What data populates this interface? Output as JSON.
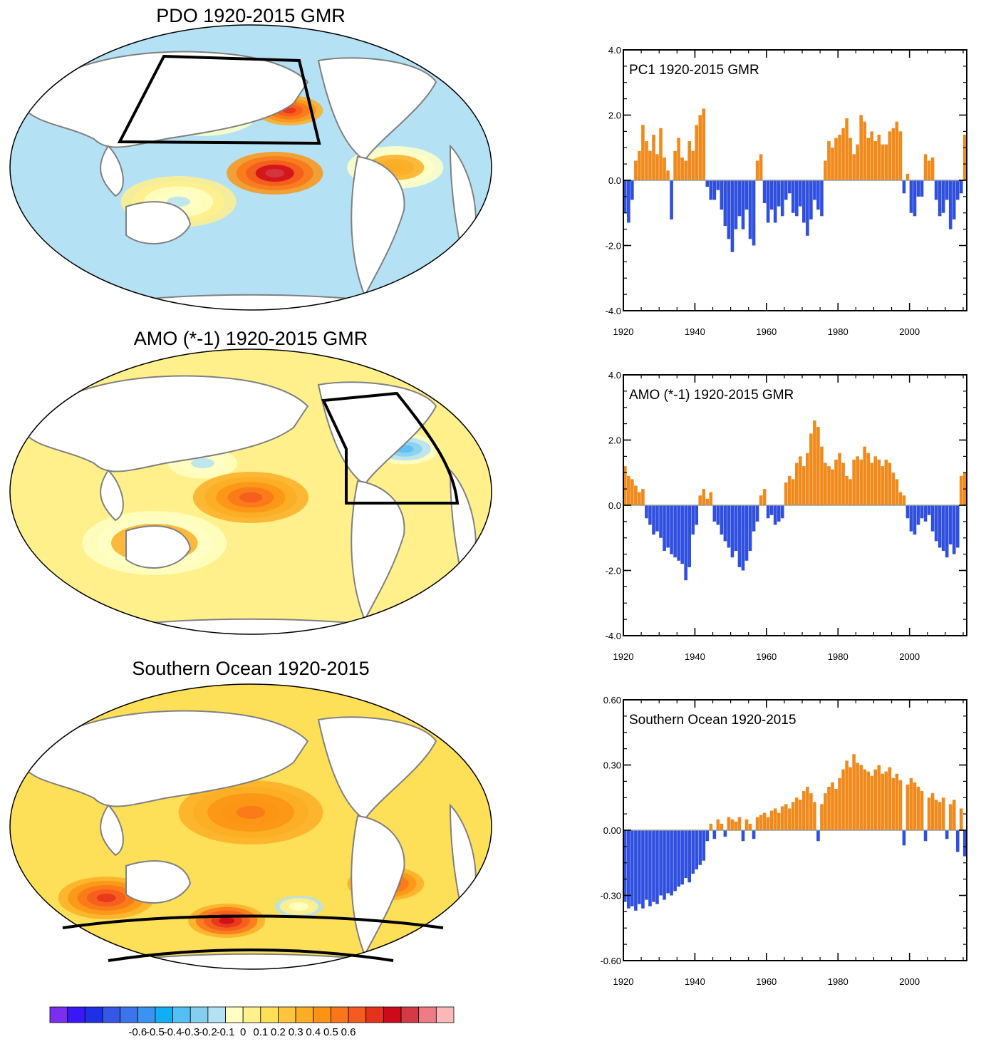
{
  "maps": [
    {
      "title": "PDO 1920-2015 GMR",
      "region": "north-pacific-box",
      "pattern": [
        {
          "lon": 0.45,
          "lat": 0.28,
          "value": -0.6,
          "spread": 0.08
        },
        {
          "lon": 0.4,
          "lat": 0.3,
          "value": -0.45,
          "spread": 0.12
        },
        {
          "lon": 0.58,
          "lat": 0.3,
          "value": 0.35,
          "spread": 0.07
        },
        {
          "lon": 0.55,
          "lat": 0.52,
          "value": 0.45,
          "spread": 0.1
        },
        {
          "lon": 0.35,
          "lat": 0.62,
          "value": -0.2,
          "spread": 0.12
        },
        {
          "lon": 0.8,
          "lat": 0.5,
          "value": 0.1,
          "spread": 0.1
        }
      ]
    },
    {
      "title": "AMO (*-1) 1920-2015 GMR",
      "region": "north-atlantic-box",
      "pattern": [
        {
          "lon": 0.78,
          "lat": 0.22,
          "value": -0.5,
          "spread": 0.06
        },
        {
          "lon": 0.82,
          "lat": 0.35,
          "value": -0.35,
          "spread": 0.09
        },
        {
          "lon": 0.4,
          "lat": 0.4,
          "value": -0.2,
          "spread": 0.12
        },
        {
          "lon": 0.5,
          "lat": 0.52,
          "value": 0.25,
          "spread": 0.12
        },
        {
          "lon": 0.3,
          "lat": 0.68,
          "value": 0.1,
          "spread": 0.15
        }
      ]
    },
    {
      "title": "Southern Ocean 1920-2015",
      "region": "southern-ocean-band",
      "pattern": [
        {
          "lon": 0.45,
          "lat": 0.83,
          "value": 0.4,
          "spread": 0.08
        },
        {
          "lon": 0.2,
          "lat": 0.75,
          "value": 0.3,
          "spread": 0.1
        },
        {
          "lon": 0.78,
          "lat": 0.7,
          "value": 0.35,
          "spread": 0.08
        },
        {
          "lon": 0.5,
          "lat": 0.45,
          "value": 0.2,
          "spread": 0.15
        },
        {
          "lon": 0.6,
          "lat": 0.78,
          "value": -0.15,
          "spread": 0.05
        }
      ]
    }
  ],
  "colorbar": {
    "colors": [
      "#7b2ef0",
      "#3a17f6",
      "#1f2fe6",
      "#3656e6",
      "#3c74ec",
      "#3b92f0",
      "#10aef2",
      "#54bff4",
      "#84cfee",
      "#b4e1f4",
      "#ffffc4",
      "#fff08c",
      "#fee058",
      "#fdc53c",
      "#fbad24",
      "#fb9414",
      "#fa761a",
      "#f55a1e",
      "#e6321c",
      "#cc0a1a",
      "#d43a45",
      "#ed7c86",
      "#fab8b8"
    ],
    "labels": [
      "-0.6",
      "-0.5",
      "-0.4",
      "-0.3",
      "-0.2",
      "-0.1",
      "0",
      "0.1",
      "0.2",
      "0.3",
      "0.4",
      "0.5",
      "0.6"
    ]
  },
  "chart_data": [
    {
      "type": "bar",
      "title": "PC1 1920-2015 GMR",
      "xlim": [
        1920,
        2016
      ],
      "ylim": [
        -4.0,
        4.0
      ],
      "xticks": [
        1920,
        1940,
        1960,
        1980,
        2000
      ],
      "xtick_labels": [
        "1920",
        "1940",
        "1960",
        "1980",
        "2000"
      ],
      "yticks": [
        -4.0,
        -2.0,
        0.0,
        2.0,
        4.0
      ],
      "ytick_labels": [
        "-4.0",
        "-2.0",
        "0.0",
        "2.0",
        "4.0"
      ],
      "positive_color": "#f08a1c",
      "negative_color": "#2f4fe0",
      "x": [
        1920,
        1921,
        1922,
        1923,
        1924,
        1925,
        1926,
        1927,
        1928,
        1929,
        1930,
        1931,
        1932,
        1933,
        1934,
        1935,
        1936,
        1937,
        1938,
        1939,
        1940,
        1941,
        1942,
        1943,
        1944,
        1945,
        1946,
        1947,
        1948,
        1949,
        1950,
        1951,
        1952,
        1953,
        1954,
        1955,
        1956,
        1957,
        1958,
        1959,
        1960,
        1961,
        1962,
        1963,
        1964,
        1965,
        1966,
        1967,
        1968,
        1969,
        1970,
        1971,
        1972,
        1973,
        1974,
        1975,
        1976,
        1977,
        1978,
        1979,
        1980,
        1981,
        1982,
        1983,
        1984,
        1985,
        1986,
        1987,
        1988,
        1989,
        1990,
        1991,
        1992,
        1993,
        1994,
        1995,
        1996,
        1997,
        1998,
        1999,
        2000,
        2001,
        2002,
        2003,
        2004,
        2005,
        2006,
        2007,
        2008,
        2009,
        2010,
        2011,
        2012,
        2013,
        2014,
        2015
      ],
      "values": [
        -1.0,
        -1.3,
        -0.6,
        0.6,
        0.9,
        1.7,
        1.2,
        0.9,
        1.4,
        0.8,
        1.6,
        0.7,
        0.3,
        -1.2,
        0.9,
        1.3,
        0.7,
        0.6,
        1.2,
        0.9,
        1.7,
        2.0,
        2.2,
        -0.2,
        -0.6,
        -0.6,
        -0.3,
        -0.9,
        -1.4,
        -1.8,
        -2.2,
        -1.5,
        -1.1,
        -1.5,
        -0.9,
        -1.8,
        -2.0,
        0.6,
        0.8,
        -0.7,
        -1.3,
        -0.9,
        -1.3,
        -0.8,
        -1.1,
        -0.6,
        -0.4,
        -1.0,
        -1.1,
        -0.8,
        -1.3,
        -1.7,
        -1.2,
        -0.6,
        -0.9,
        -1.1,
        0.6,
        1.2,
        1.0,
        1.3,
        1.4,
        1.6,
        1.9,
        1.3,
        0.8,
        1.1,
        2.0,
        1.8,
        1.3,
        1.5,
        1.2,
        1.4,
        1.1,
        1.1,
        1.5,
        1.6,
        1.8,
        1.5,
        -0.4,
        0.2,
        -1.0,
        -1.1,
        -0.5,
        -0.5,
        0.8,
        0.6,
        0.7,
        -0.6,
        -1.1,
        -1.0,
        -0.6,
        -1.5,
        -1.2,
        -0.6,
        -0.4,
        1.4
      ]
    },
    {
      "type": "bar",
      "title": "AMO (*-1) 1920-2015 GMR",
      "xlim": [
        1920,
        2016
      ],
      "ylim": [
        -4.0,
        4.0
      ],
      "xticks": [
        1920,
        1940,
        1960,
        1980,
        2000
      ],
      "xtick_labels": [
        "1920",
        "1940",
        "1960",
        "1980",
        "2000"
      ],
      "yticks": [
        -4.0,
        -2.0,
        0.0,
        2.0,
        4.0
      ],
      "ytick_labels": [
        "-4.0",
        "-2.0",
        "0.0",
        "2.0",
        "4.0"
      ],
      "positive_color": "#f08a1c",
      "negative_color": "#2f4fe0",
      "x": [
        1920,
        1921,
        1922,
        1923,
        1924,
        1925,
        1926,
        1927,
        1928,
        1929,
        1930,
        1931,
        1932,
        1933,
        1934,
        1935,
        1936,
        1937,
        1938,
        1939,
        1940,
        1941,
        1942,
        1943,
        1944,
        1945,
        1946,
        1947,
        1948,
        1949,
        1950,
        1951,
        1952,
        1953,
        1954,
        1955,
        1956,
        1957,
        1958,
        1959,
        1960,
        1961,
        1962,
        1963,
        1964,
        1965,
        1966,
        1967,
        1968,
        1969,
        1970,
        1971,
        1972,
        1973,
        1974,
        1975,
        1976,
        1977,
        1978,
        1979,
        1980,
        1981,
        1982,
        1983,
        1984,
        1985,
        1986,
        1987,
        1988,
        1989,
        1990,
        1991,
        1992,
        1993,
        1994,
        1995,
        1996,
        1997,
        1998,
        1999,
        2000,
        2001,
        2002,
        2003,
        2004,
        2005,
        2006,
        2007,
        2008,
        2009,
        2010,
        2011,
        2012,
        2013,
        2014,
        2015
      ],
      "values": [
        1.2,
        0.9,
        0.8,
        0.6,
        0.4,
        0.5,
        -0.4,
        -0.6,
        -0.9,
        -0.8,
        -1.0,
        -1.4,
        -1.3,
        -1.5,
        -1.6,
        -1.7,
        -1.8,
        -2.3,
        -1.9,
        -0.9,
        -0.6,
        0.3,
        0.5,
        0.2,
        0.4,
        -0.5,
        -0.6,
        -0.9,
        -1.1,
        -1.3,
        -1.6,
        -1.4,
        -1.9,
        -2.0,
        -1.7,
        -1.4,
        -0.8,
        -0.5,
        0.3,
        0.5,
        -0.4,
        -0.3,
        -0.6,
        -0.5,
        -0.4,
        0.7,
        0.9,
        0.8,
        1.3,
        1.5,
        1.2,
        1.6,
        2.2,
        2.6,
        2.4,
        1.8,
        1.3,
        1.2,
        1.1,
        1.4,
        1.6,
        1.3,
        0.9,
        0.8,
        1.4,
        1.5,
        1.4,
        1.8,
        1.6,
        1.3,
        1.5,
        1.4,
        1.2,
        1.4,
        1.3,
        1.0,
        0.8,
        0.4,
        0.3,
        -0.4,
        -0.8,
        -0.9,
        -0.6,
        -0.4,
        -0.5,
        -0.3,
        -0.8,
        -1.1,
        -1.3,
        -1.4,
        -1.6,
        -1.2,
        -1.5,
        -1.3,
        0.9,
        1.0
      ]
    },
    {
      "type": "bar",
      "title": "Southern Ocean 1920-2015",
      "xlim": [
        1920,
        2016
      ],
      "ylim": [
        -0.6,
        0.6
      ],
      "xticks": [
        1920,
        1940,
        1960,
        1980,
        2000
      ],
      "xtick_labels": [
        "1920",
        "1940",
        "1960",
        "1980",
        "2000"
      ],
      "yticks": [
        -0.6,
        -0.3,
        0.0,
        0.3,
        0.6
      ],
      "ytick_labels": [
        "-0.60",
        "-0.30",
        "0.00",
        "0.30",
        "0.60"
      ],
      "positive_color": "#f08a1c",
      "negative_color": "#2f4fe0",
      "x": [
        1920,
        1921,
        1922,
        1923,
        1924,
        1925,
        1926,
        1927,
        1928,
        1929,
        1930,
        1931,
        1932,
        1933,
        1934,
        1935,
        1936,
        1937,
        1938,
        1939,
        1940,
        1941,
        1942,
        1943,
        1944,
        1945,
        1946,
        1947,
        1948,
        1949,
        1950,
        1951,
        1952,
        1953,
        1954,
        1955,
        1956,
        1957,
        1958,
        1959,
        1960,
        1961,
        1962,
        1963,
        1964,
        1965,
        1966,
        1967,
        1968,
        1969,
        1970,
        1971,
        1972,
        1973,
        1974,
        1975,
        1976,
        1977,
        1978,
        1979,
        1980,
        1981,
        1982,
        1983,
        1984,
        1985,
        1986,
        1987,
        1988,
        1989,
        1990,
        1991,
        1992,
        1993,
        1994,
        1995,
        1996,
        1997,
        1998,
        1999,
        2000,
        2001,
        2002,
        2003,
        2004,
        2005,
        2006,
        2007,
        2008,
        2009,
        2010,
        2011,
        2012,
        2013,
        2014,
        2015
      ],
      "values": [
        -0.33,
        -0.36,
        -0.35,
        -0.37,
        -0.34,
        -0.36,
        -0.32,
        -0.35,
        -0.33,
        -0.34,
        -0.3,
        -0.32,
        -0.29,
        -0.3,
        -0.28,
        -0.26,
        -0.25,
        -0.22,
        -0.24,
        -0.2,
        -0.18,
        -0.16,
        -0.14,
        -0.05,
        0.03,
        -0.04,
        0.05,
        0.03,
        -0.03,
        0.06,
        0.05,
        0.04,
        0.06,
        -0.05,
        0.05,
        0.03,
        -0.04,
        0.06,
        0.07,
        0.08,
        0.06,
        0.09,
        0.1,
        0.08,
        0.11,
        0.12,
        0.1,
        0.13,
        0.15,
        0.14,
        0.18,
        0.2,
        0.17,
        0.13,
        -0.05,
        0.12,
        0.17,
        0.2,
        0.22,
        0.19,
        0.24,
        0.28,
        0.32,
        0.29,
        0.35,
        0.31,
        0.3,
        0.28,
        0.27,
        0.25,
        0.28,
        0.3,
        0.26,
        0.27,
        0.29,
        0.24,
        0.26,
        0.23,
        -0.07,
        0.21,
        0.24,
        0.22,
        0.2,
        0.18,
        -0.05,
        0.15,
        0.17,
        0.14,
        0.13,
        0.15,
        -0.04,
        0.12,
        0.14,
        -0.1,
        0.1,
        -0.12
      ]
    }
  ]
}
